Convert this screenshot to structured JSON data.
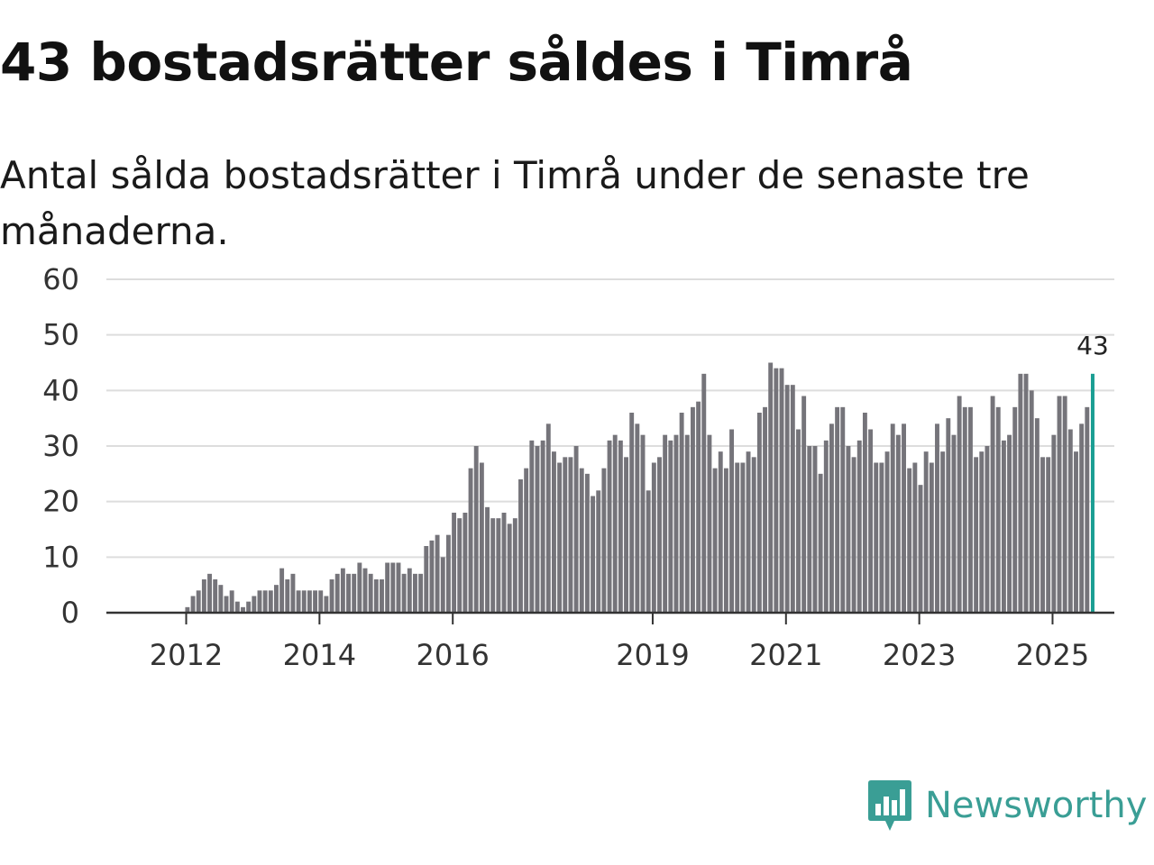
{
  "header": {
    "title": "43 bostadsrätter såldes i Timrå",
    "subtitle": "Antal sålda bostadsrätter i Timrå under de senaste tre månaderna."
  },
  "branding": {
    "logo_text": "Newsworthy",
    "logo_icon": "bar-chart-speech-bubble-icon",
    "logo_color": "#3a9e95"
  },
  "colors": {
    "bar": "#75747a",
    "highlight": "#1a9e93",
    "grid": "#dddddd",
    "axis": "#333333"
  },
  "chart_data": {
    "type": "bar",
    "title": "43 bostadsrätter såldes i Timrå",
    "subtitle": "Antal sålda bostadsrätter i Timrå under de senaste tre månaderna.",
    "xlabel": "",
    "ylabel": "",
    "ylim": [
      0,
      60
    ],
    "yticks": [
      0,
      10,
      20,
      30,
      40,
      50,
      60
    ],
    "grid": true,
    "start_month": "2011-04",
    "x_tick_labels": [
      {
        "label": "2012",
        "month": "2012-01"
      },
      {
        "label": "2014",
        "month": "2014-01"
      },
      {
        "label": "2016",
        "month": "2016-01"
      },
      {
        "label": "2019",
        "month": "2019-01"
      },
      {
        "label": "2021",
        "month": "2021-01"
      },
      {
        "label": "2023",
        "month": "2023-01"
      },
      {
        "label": "2025",
        "month": "2025-01"
      }
    ],
    "highlight_label": "43",
    "values": [
      0,
      0,
      0,
      0,
      0,
      0,
      0,
      0,
      0,
      1,
      3,
      4,
      6,
      7,
      6,
      5,
      3,
      4,
      2,
      1,
      2,
      3,
      4,
      4,
      4,
      5,
      8,
      6,
      7,
      4,
      4,
      4,
      4,
      4,
      3,
      6,
      7,
      8,
      7,
      7,
      9,
      8,
      7,
      6,
      6,
      9,
      9,
      9,
      7,
      8,
      7,
      7,
      12,
      13,
      14,
      10,
      14,
      18,
      17,
      18,
      26,
      30,
      27,
      19,
      17,
      17,
      18,
      16,
      17,
      24,
      26,
      31,
      30,
      31,
      34,
      29,
      27,
      28,
      28,
      30,
      26,
      25,
      21,
      22,
      26,
      31,
      32,
      31,
      28,
      36,
      34,
      32,
      22,
      27,
      28,
      32,
      31,
      32,
      36,
      32,
      37,
      38,
      43,
      32,
      26,
      29,
      26,
      33,
      27,
      27,
      29,
      28,
      36,
      37,
      45,
      44,
      44,
      41,
      41,
      33,
      39,
      30,
      30,
      25,
      31,
      34,
      37,
      37,
      30,
      28,
      31,
      36,
      33,
      27,
      27,
      29,
      34,
      32,
      34,
      26,
      27,
      23,
      29,
      27,
      34,
      29,
      35,
      32,
      39,
      37,
      37,
      28,
      29,
      30,
      39,
      37,
      31,
      32,
      37,
      43,
      43,
      40,
      35,
      28,
      28,
      32,
      39,
      39,
      33,
      29,
      34,
      37,
      43
    ]
  }
}
